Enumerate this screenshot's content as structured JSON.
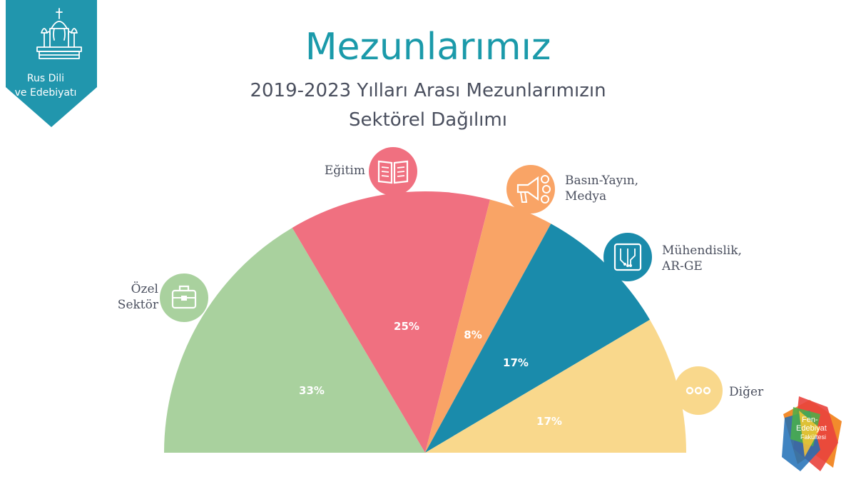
{
  "badge": {
    "line1": "Rus Dili",
    "line2": "ve Edebiyatı",
    "color": "#2196ad"
  },
  "title": "Mezunlarımız",
  "subtitle_line1": "2019-2023 Yılları Arası Mezunlarımızın",
  "subtitle_line2": "Sektörel Dağılımı",
  "chart_data": {
    "type": "pie",
    "variant": "half-donut",
    "title": "Mezunlarımız",
    "subtitle": "2019-2023 Yılları Arası Mezunlarımızın Sektörel Dağılımı",
    "slices": [
      {
        "label": "Özel Sektör",
        "label_lines": [
          "Özel",
          "Sektör"
        ],
        "value": 33,
        "value_label": "33%",
        "color": "#a9d19e",
        "icon": "briefcase-icon"
      },
      {
        "label": "Eğitim",
        "label_lines": [
          "Eğitim"
        ],
        "value": 25,
        "value_label": "25%",
        "color": "#f07080",
        "icon": "book-icon"
      },
      {
        "label": "Basın-Yayın, Medya",
        "label_lines": [
          "Basın-Yayın,",
          "Medya"
        ],
        "value": 8,
        "value_label": "8%",
        "color": "#f9a466",
        "icon": "megaphone-icon"
      },
      {
        "label": "Mühendislik, AR-GE",
        "label_lines": [
          "Mühendislik,",
          "AR-GE"
        ],
        "value": 17,
        "value_label": "17%",
        "color": "#1a8bab",
        "icon": "circuit-icon"
      },
      {
        "label": "Diğer",
        "label_lines": [
          "Diğer"
        ],
        "value": 17,
        "value_label": "17%",
        "color": "#f9d88c",
        "icon": "more-dots-icon"
      }
    ]
  },
  "faculty_logo": {
    "line1": "Fen-",
    "line2": "Edebiyat",
    "line3": "Fakültesi"
  }
}
